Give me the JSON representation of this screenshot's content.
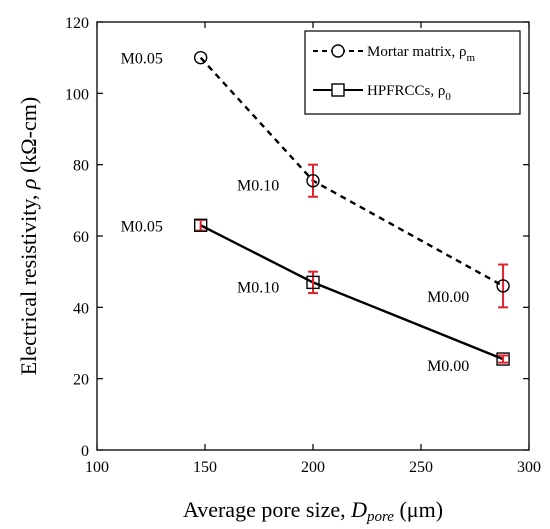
{
  "chart_data": {
    "type": "line",
    "x": [
      148,
      200,
      288
    ],
    "xlim": [
      100,
      300
    ],
    "ylim": [
      0,
      120
    ],
    "xticks": [
      100,
      150,
      200,
      250,
      300
    ],
    "yticks": [
      0,
      20,
      40,
      60,
      80,
      100,
      120
    ],
    "grid": false,
    "legend_position": "top-right",
    "xlabel_main": "Average pore size, ",
    "xlabel_var": "D",
    "xlabel_sub": "pore",
    "xlabel_unit": " (μm)",
    "ylabel_main": "Electrical resistivity, ",
    "ylabel_var": "ρ",
    "ylabel_unit": " (kΩ-cm)",
    "series": [
      {
        "name": "Mortar matrix, ρ",
        "name_sub": "m",
        "line_style": "dashed",
        "marker": "circle",
        "values": [
          110,
          75.5,
          46
        ],
        "err": [
          null,
          4.5,
          6
        ],
        "labels": [
          "M0.05",
          "M0.10",
          "M0.00"
        ]
      },
      {
        "name": "HPFRCCs, ρ",
        "name_sub": "0",
        "line_style": "solid",
        "marker": "square",
        "values": [
          63,
          47,
          25.5
        ],
        "err": [
          1.5,
          3,
          1
        ],
        "labels": [
          "M0.05",
          "M0.10",
          "M0.00"
        ]
      }
    ],
    "colors": {
      "line": "#000000",
      "error_bar": "#e0222a"
    }
  }
}
